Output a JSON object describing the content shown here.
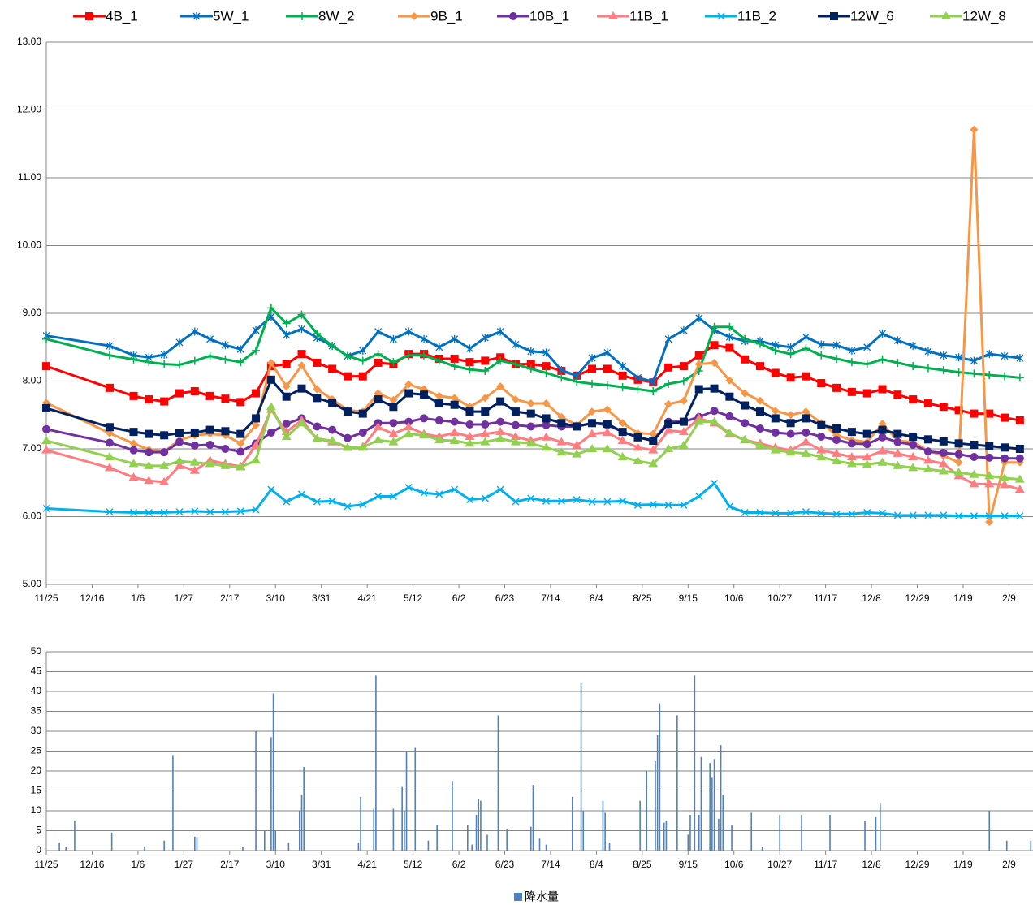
{
  "chart_data": [
    {
      "type": "line",
      "x": [
        "11/25",
        "12/24",
        "1/4",
        "1/11",
        "1/18",
        "1/25",
        "2/1",
        "2/8",
        "2/15",
        "2/22",
        "3/1",
        "3/8",
        "3/15",
        "3/22",
        "3/29",
        "4/5",
        "4/12",
        "4/19",
        "4/26",
        "5/3",
        "5/10",
        "5/17",
        "5/24",
        "5/31",
        "6/7",
        "6/14",
        "6/21",
        "6/28",
        "7/5",
        "7/12",
        "7/19",
        "7/26",
        "8/2",
        "8/9",
        "8/16",
        "8/23",
        "8/30",
        "9/6",
        "9/13",
        "9/20",
        "9/27",
        "10/4",
        "10/11",
        "10/18",
        "10/25",
        "11/1",
        "11/8",
        "11/15",
        "11/22",
        "11/29",
        "12/6",
        "12/13",
        "12/20",
        "12/27",
        "1/3",
        "1/10",
        "1/17",
        "1/24",
        "1/31",
        "2/7",
        "2/14"
      ],
      "xlim": [
        "11/25",
        "2/20"
      ],
      "xticks": [
        "11/25",
        "12/16",
        "1/6",
        "1/27",
        "2/17",
        "3/10",
        "3/31",
        "4/21",
        "5/12",
        "6/2",
        "6/23",
        "7/14",
        "8/4",
        "8/25",
        "9/15",
        "10/6",
        "10/27",
        "11/17",
        "12/8",
        "12/29",
        "1/19",
        "2/9"
      ],
      "ylim": [
        5,
        13
      ],
      "yticks": [
        {
          "value": 5,
          "label": "5.00"
        },
        {
          "value": 6,
          "label": "6.00"
        },
        {
          "value": 7,
          "label": "7.00"
        },
        {
          "value": 8,
          "label": "8.00"
        },
        {
          "value": 9,
          "label": "9.00"
        },
        {
          "value": 10,
          "label": "10.00"
        },
        {
          "value": 11,
          "label": "11.00"
        },
        {
          "value": 12,
          "label": "12.00"
        },
        {
          "value": 13,
          "label": "13.00"
        }
      ],
      "grid": true,
      "legend": "top",
      "series": [
        {
          "name": "4B_1",
          "color": "#ff0000",
          "marker": "square",
          "values": [
            8.22,
            7.9,
            7.78,
            7.73,
            7.7,
            7.82,
            7.85,
            7.78,
            7.74,
            7.69,
            7.82,
            8.22,
            8.25,
            8.4,
            8.27,
            8.18,
            8.07,
            8.07,
            8.27,
            8.25,
            8.4,
            8.4,
            8.33,
            8.33,
            8.28,
            8.3,
            8.35,
            8.25,
            8.25,
            8.22,
            8.15,
            8.08,
            8.18,
            8.18,
            8.08,
            8.02,
            7.98,
            8.2,
            8.22,
            8.38,
            8.53,
            8.49,
            8.32,
            8.22,
            8.12,
            8.05,
            8.07,
            7.97,
            7.9,
            7.84,
            7.82,
            7.88,
            7.8,
            7.73,
            7.67,
            7.62,
            7.57,
            7.52,
            7.52,
            7.46,
            7.42
          ]
        },
        {
          "name": "5W_1",
          "color": "#0070c0",
          "marker": "asterisk",
          "values": [
            8.67,
            8.52,
            8.38,
            8.35,
            8.39,
            8.57,
            8.73,
            8.62,
            8.53,
            8.47,
            8.75,
            8.95,
            8.68,
            8.77,
            8.64,
            8.52,
            8.37,
            8.45,
            8.73,
            8.62,
            8.73,
            8.62,
            8.5,
            8.62,
            8.48,
            8.64,
            8.73,
            8.54,
            8.44,
            8.42,
            8.16,
            8.08,
            8.34,
            8.42,
            8.22,
            8.05,
            7.99,
            8.62,
            8.75,
            8.93,
            8.75,
            8.65,
            8.59,
            8.59,
            8.53,
            8.5,
            8.65,
            8.54,
            8.53,
            8.45,
            8.5,
            8.7,
            8.6,
            8.52,
            8.44,
            8.38,
            8.35,
            8.3,
            8.4,
            8.37,
            8.34
          ]
        },
        {
          "name": "8W_2",
          "color": "#00b050",
          "marker": "plus",
          "values": [
            8.62,
            8.38,
            8.32,
            8.28,
            8.25,
            8.24,
            8.3,
            8.37,
            8.32,
            8.28,
            8.45,
            9.08,
            8.85,
            8.98,
            8.7,
            8.52,
            8.37,
            8.3,
            8.4,
            8.28,
            8.38,
            8.38,
            8.3,
            8.22,
            8.17,
            8.15,
            8.3,
            8.25,
            8.18,
            8.12,
            8.05,
            7.99,
            7.96,
            7.94,
            7.91,
            7.88,
            7.85,
            7.96,
            8.0,
            8.15,
            8.8,
            8.8,
            8.62,
            8.55,
            8.45,
            8.4,
            8.48,
            8.38,
            8.33,
            8.28,
            8.25,
            8.32,
            8.27,
            8.22,
            8.19,
            8.16,
            8.13,
            8.11,
            8.09,
            8.07,
            8.05
          ]
        },
        {
          "name": "9B_1",
          "color": "#f79646",
          "marker": "diamond",
          "values": [
            7.68,
            7.23,
            7.08,
            6.99,
            6.96,
            7.13,
            7.2,
            7.22,
            7.2,
            7.08,
            7.35,
            8.27,
            7.92,
            8.23,
            7.88,
            7.73,
            7.57,
            7.55,
            7.82,
            7.72,
            7.95,
            7.88,
            7.78,
            7.75,
            7.62,
            7.75,
            7.92,
            7.73,
            7.67,
            7.67,
            7.47,
            7.35,
            7.55,
            7.58,
            7.38,
            7.23,
            7.22,
            7.66,
            7.71,
            8.25,
            8.27,
            8.01,
            7.82,
            7.71,
            7.56,
            7.5,
            7.55,
            7.38,
            7.2,
            7.13,
            7.1,
            7.37,
            7.12,
            7.1,
            6.97,
            6.9,
            6.8,
            11.71,
            5.92,
            6.8,
            6.8
          ]
        },
        {
          "name": "10B_1",
          "color": "#7030a0",
          "marker": "circle",
          "values": [
            7.29,
            7.09,
            6.98,
            6.95,
            6.95,
            7.1,
            7.05,
            7.06,
            7.0,
            6.96,
            7.08,
            7.24,
            7.37,
            7.45,
            7.33,
            7.28,
            7.16,
            7.24,
            7.38,
            7.38,
            7.4,
            7.45,
            7.42,
            7.4,
            7.36,
            7.36,
            7.4,
            7.35,
            7.33,
            7.35,
            7.33,
            7.33,
            7.38,
            7.35,
            7.25,
            7.17,
            7.12,
            7.4,
            7.4,
            7.47,
            7.56,
            7.48,
            7.38,
            7.3,
            7.24,
            7.22,
            7.24,
            7.18,
            7.13,
            7.08,
            7.07,
            7.17,
            7.1,
            7.06,
            6.96,
            6.94,
            6.92,
            6.88,
            6.87,
            6.86,
            6.86
          ]
        },
        {
          "name": "11B_1",
          "color": "#ff7c80",
          "marker": "triangle",
          "values": [
            6.98,
            6.72,
            6.58,
            6.53,
            6.51,
            6.75,
            6.68,
            6.83,
            6.78,
            6.74,
            7.05,
            7.58,
            7.25,
            7.42,
            7.15,
            7.1,
            7.02,
            7.03,
            7.32,
            7.22,
            7.32,
            7.22,
            7.18,
            7.24,
            7.18,
            7.22,
            7.25,
            7.18,
            7.12,
            7.17,
            7.1,
            7.05,
            7.22,
            7.24,
            7.12,
            7.02,
            6.98,
            7.27,
            7.25,
            7.45,
            7.38,
            7.22,
            7.13,
            7.08,
            7.02,
            6.98,
            7.1,
            6.98,
            6.93,
            6.88,
            6.88,
            6.97,
            6.93,
            6.88,
            6.83,
            6.78,
            6.6,
            6.48,
            6.48,
            6.47,
            6.4
          ]
        },
        {
          "name": "11B_2",
          "color": "#00b0f0",
          "marker": "cross",
          "values": [
            6.12,
            6.07,
            6.06,
            6.06,
            6.06,
            6.07,
            6.08,
            6.07,
            6.07,
            6.08,
            6.1,
            6.4,
            6.22,
            6.33,
            6.22,
            6.23,
            6.15,
            6.18,
            6.3,
            6.3,
            6.43,
            6.35,
            6.33,
            6.4,
            6.25,
            6.27,
            6.4,
            6.22,
            6.27,
            6.23,
            6.23,
            6.25,
            6.22,
            6.22,
            6.23,
            6.17,
            6.18,
            6.17,
            6.17,
            6.3,
            6.49,
            6.15,
            6.06,
            6.06,
            6.05,
            6.05,
            6.07,
            6.05,
            6.04,
            6.04,
            6.06,
            6.05,
            6.02,
            6.02,
            6.02,
            6.02,
            6.01,
            6.01,
            6.01,
            6.01,
            6.01
          ]
        },
        {
          "name": "12W_6",
          "color": "#002060",
          "marker": "square",
          "values": [
            7.6,
            7.32,
            7.25,
            7.22,
            7.2,
            7.23,
            7.24,
            7.28,
            7.26,
            7.22,
            7.45,
            8.02,
            7.77,
            7.89,
            7.75,
            7.68,
            7.55,
            7.52,
            7.73,
            7.62,
            7.82,
            7.8,
            7.67,
            7.65,
            7.55,
            7.55,
            7.7,
            7.55,
            7.52,
            7.45,
            7.38,
            7.33,
            7.38,
            7.37,
            7.25,
            7.17,
            7.12,
            7.37,
            7.4,
            7.88,
            7.89,
            7.77,
            7.64,
            7.55,
            7.45,
            7.38,
            7.45,
            7.35,
            7.3,
            7.25,
            7.22,
            7.28,
            7.22,
            7.18,
            7.14,
            7.11,
            7.08,
            7.06,
            7.04,
            7.02,
            7.0
          ]
        },
        {
          "name": "12W_8",
          "color": "#92d050",
          "marker": "triangle",
          "values": [
            7.12,
            6.88,
            6.78,
            6.75,
            6.75,
            6.82,
            6.8,
            6.78,
            6.75,
            6.73,
            6.83,
            7.62,
            7.18,
            7.38,
            7.15,
            7.12,
            7.02,
            7.02,
            7.13,
            7.1,
            7.22,
            7.2,
            7.13,
            7.12,
            7.08,
            7.1,
            7.15,
            7.1,
            7.08,
            7.02,
            6.95,
            6.92,
            7.0,
            7.0,
            6.88,
            6.82,
            6.78,
            7.0,
            7.05,
            7.4,
            7.4,
            7.23,
            7.13,
            7.05,
            6.98,
            6.95,
            6.93,
            6.88,
            6.82,
            6.78,
            6.77,
            6.8,
            6.75,
            6.72,
            6.7,
            6.67,
            6.65,
            6.62,
            6.6,
            6.57,
            6.55
          ]
        }
      ]
    },
    {
      "type": "bar",
      "x": [
        "12/1",
        "12/4",
        "12/8",
        "12/25",
        "1/9",
        "1/18",
        "1/22",
        "2/1",
        "2/2",
        "2/23",
        "3/1",
        "3/5",
        "3/8",
        "3/9",
        "3/10",
        "3/16",
        "3/21",
        "3/22",
        "3/23",
        "4/17",
        "4/18",
        "4/24",
        "4/25",
        "5/3",
        "5/7",
        "5/8",
        "5/9",
        "5/13",
        "5/19",
        "5/23",
        "5/30",
        "6/6",
        "6/8",
        "6/10",
        "6/11",
        "6/12",
        "6/15",
        "6/20",
        "6/24",
        "7/5",
        "7/6",
        "7/9",
        "7/12",
        "7/24",
        "7/28",
        "7/29",
        "8/7",
        "8/8",
        "8/10",
        "8/24",
        "8/27",
        "8/31",
        "9/1",
        "9/2",
        "9/4",
        "9/5",
        "9/10",
        "9/15",
        "9/16",
        "9/18",
        "9/20",
        "9/21",
        "9/25",
        "9/26",
        "9/27",
        "9/29",
        "9/30",
        "10/1",
        "10/5",
        "10/14",
        "10/19",
        "10/27",
        "11/6",
        "11/19",
        "12/5",
        "12/10",
        "12/12",
        "1/31",
        "2/8",
        "2/19"
      ],
      "values": [
        2,
        1,
        7.5,
        4.5,
        1,
        2.5,
        24,
        3.5,
        3.5,
        1,
        30,
        5,
        28.5,
        39.5,
        5,
        2,
        10,
        14,
        21,
        2,
        13.5,
        10.5,
        44,
        10.5,
        16,
        10,
        25,
        26,
        2.5,
        6.5,
        17.5,
        6.5,
        1.5,
        9,
        13,
        12.5,
        4,
        34,
        5.5,
        6,
        16.5,
        3,
        1.5,
        13.5,
        42,
        10,
        12.5,
        9.5,
        2,
        12.5,
        20,
        22.5,
        29,
        37,
        7,
        7.5,
        34,
        4,
        9,
        44,
        9,
        23.5,
        22,
        18.5,
        23,
        8,
        26.5,
        14,
        6.5,
        9.5,
        1,
        9,
        9,
        9,
        7.5,
        8.5,
        12,
        10,
        2.5,
        2.5
      ],
      "color": "#4f81bd",
      "name": "降水量",
      "xlim": [
        "11/25",
        "2/20"
      ],
      "xticks": [
        "11/25",
        "12/16",
        "1/6",
        "1/27",
        "2/17",
        "3/10",
        "3/31",
        "4/21",
        "5/12",
        "6/2",
        "6/23",
        "7/14",
        "8/4",
        "8/25",
        "9/15",
        "10/6",
        "10/27",
        "11/17",
        "12/8",
        "12/29",
        "1/19",
        "2/9"
      ],
      "ylim": [
        0,
        50
      ],
      "yticks": [
        0,
        5,
        10,
        15,
        20,
        25,
        30,
        35,
        40,
        45,
        50
      ],
      "grid": true,
      "legend": "bottom"
    }
  ]
}
